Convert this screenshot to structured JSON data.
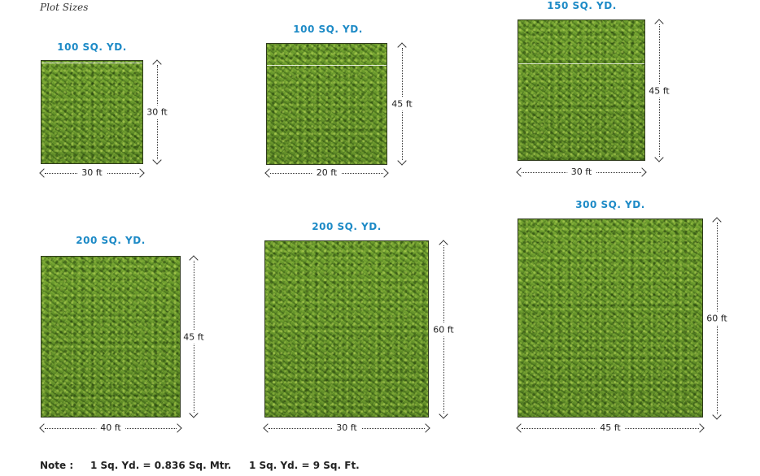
{
  "page_title": "Plot Sizes",
  "plots": [
    {
      "label": "100 SQ. YD.",
      "width": "30 ft",
      "height": "30 ft"
    },
    {
      "label": "100 SQ. YD.",
      "width": "20 ft",
      "height": "45 ft"
    },
    {
      "label": "150 SQ. YD.",
      "width": "30 ft",
      "height": "45 ft"
    },
    {
      "label": "200 SQ. YD.",
      "width": "40 ft",
      "height": "45 ft"
    },
    {
      "label": "200 SQ. YD.",
      "width": "30 ft",
      "height": "60 ft"
    },
    {
      "label": "300 SQ. YD.",
      "width": "45 ft",
      "height": "60 ft"
    }
  ],
  "note": {
    "prefix": "Note :",
    "conversion_1": "1 Sq. Yd. = 0.836 Sq. Mtr.",
    "conversion_2": "1 Sq. Yd. = 9 Sq. Ft."
  },
  "colors": {
    "label_blue": "#1d8ac6",
    "grass_green": "#5d8a27"
  }
}
